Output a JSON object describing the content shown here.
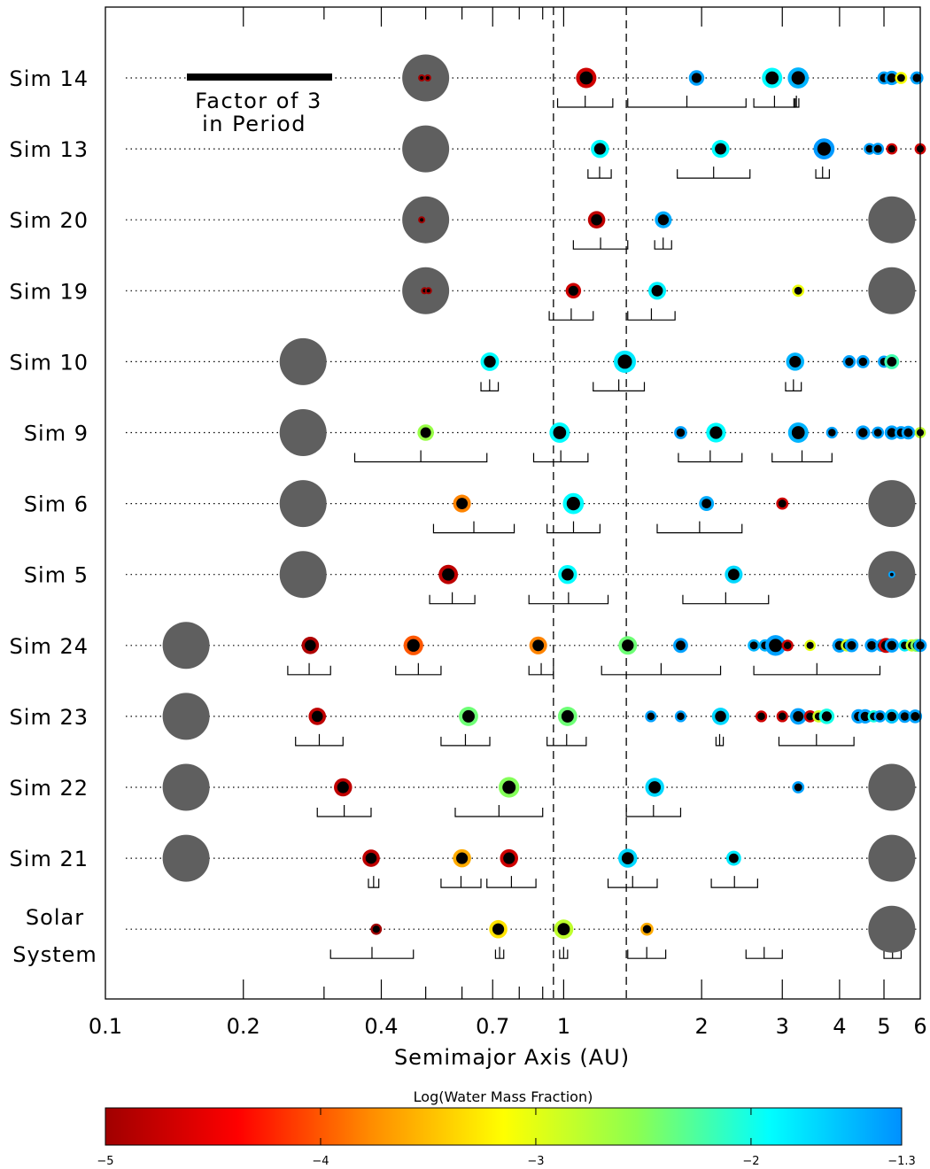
{
  "chart_data": {
    "type": "scatter",
    "title": "",
    "xlabel": "Semimajor Axis (AU)",
    "xscale": "log",
    "xlim": [
      0.1,
      6
    ],
    "x_tick_labels": [
      {
        "v": 0.1,
        "t": "0.1"
      },
      {
        "v": 0.2,
        "t": "0.2"
      },
      {
        "v": 0.4,
        "t": "0.4"
      },
      {
        "v": 0.7,
        "t": "0.7"
      },
      {
        "v": 1,
        "t": "1"
      },
      {
        "v": 2,
        "t": "2"
      },
      {
        "v": 3,
        "t": "3"
      },
      {
        "v": 4,
        "t": "4"
      },
      {
        "v": 5,
        "t": "5"
      },
      {
        "v": 6,
        "t": "6"
      }
    ],
    "x_minor_ticks": [
      0.3,
      0.5,
      0.6,
      0.8,
      0.9
    ],
    "dashed_lines_x": [
      0.95,
      1.37
    ],
    "colorbar": {
      "title": "Log(Water Mass Fraction)",
      "range": [
        -5,
        -1.3
      ],
      "ticks": [
        {
          "v": -5,
          "t": "−5"
        },
        {
          "v": -4,
          "t": "−4"
        },
        {
          "v": -3,
          "t": "−3"
        },
        {
          "v": -2,
          "t": "−2"
        },
        {
          "v": -1.3,
          "t": "−1.3"
        }
      ],
      "colors": [
        "#a00000",
        "#ff0000",
        "#ff8c00",
        "#ffff00",
        "#8cff50",
        "#00ffff",
        "#0090ff"
      ]
    },
    "annotation": {
      "line1": "Factor of 3",
      "line2": "in Period"
    },
    "rows": [
      {
        "label": "Sim 14",
        "giants": [
          {
            "a": 0.5,
            "inner": [
              {
                "a": 0.49,
                "w": -5.0
              },
              {
                "a": 0.505,
                "w": -5.0
              }
            ]
          }
        ],
        "planets": [
          {
            "a": 1.12,
            "w": -4.7,
            "m": 1.0
          },
          {
            "a": 1.95,
            "w": -1.4,
            "m": 0.4
          },
          {
            "a": 2.85,
            "w": -1.9,
            "m": 1.0
          },
          {
            "a": 3.25,
            "w": -1.5,
            "m": 1.1
          },
          {
            "a": 5.0,
            "w": -1.4,
            "m": 0.2
          },
          {
            "a": 5.2,
            "w": -1.4,
            "m": 0.3
          },
          {
            "a": 5.45,
            "w": -3.1,
            "m": 0.15
          },
          {
            "a": 5.9,
            "w": -1.4,
            "m": 0.2
          }
        ],
        "ranges": [
          [
            0.97,
            1.28
          ],
          [
            1.38,
            2.5
          ],
          [
            2.6,
            3.2
          ],
          [
            3.18,
            3.26
          ]
        ]
      },
      {
        "label": "Sim 13",
        "giants": [
          {
            "a": 0.5
          }
        ],
        "planets": [
          {
            "a": 1.2,
            "w": -1.9,
            "m": 0.7
          },
          {
            "a": 2.2,
            "w": -1.9,
            "m": 0.65
          },
          {
            "a": 3.7,
            "w": -1.35,
            "m": 1.1
          },
          {
            "a": 4.65,
            "w": -1.4,
            "m": 0.12
          },
          {
            "a": 4.85,
            "w": -1.4,
            "m": 0.15
          },
          {
            "a": 5.2,
            "w": -4.7,
            "m": 0.1
          },
          {
            "a": 6.0,
            "w": -4.7,
            "m": 0.1
          }
        ],
        "ranges": [
          [
            1.13,
            1.27
          ],
          [
            1.77,
            2.55
          ],
          [
            3.55,
            3.8
          ]
        ]
      },
      {
        "label": "Sim 20",
        "giants": [
          {
            "a": 0.5,
            "inner": [
              {
                "a": 0.49,
                "w": -5.0
              }
            ]
          },
          {
            "a": 5.2
          }
        ],
        "planets": [
          {
            "a": 1.18,
            "w": -4.8,
            "m": 0.6
          },
          {
            "a": 1.65,
            "w": -1.45,
            "m": 0.55
          }
        ],
        "ranges": [
          [
            1.05,
            1.38
          ],
          [
            1.58,
            1.72
          ]
        ]
      },
      {
        "label": "Sim 19",
        "giants": [
          {
            "a": 0.5,
            "inner": [
              {
                "a": 0.497,
                "w": -5.0
              },
              {
                "a": 0.507,
                "w": -5.0
              }
            ]
          },
          {
            "a": 5.2
          }
        ],
        "planets": [
          {
            "a": 1.05,
            "w": -4.7,
            "m": 0.4
          },
          {
            "a": 1.6,
            "w": -1.85,
            "m": 0.65
          },
          {
            "a": 3.25,
            "w": -3.05,
            "m": 0.15
          }
        ],
        "ranges": [
          [
            0.93,
            1.16
          ],
          [
            1.38,
            1.75
          ]
        ]
      },
      {
        "label": "Sim 10",
        "giants": [
          {
            "a": 0.27
          }
        ],
        "planets": [
          {
            "a": 0.69,
            "w": -1.9,
            "m": 0.75
          },
          {
            "a": 1.36,
            "w": -1.8,
            "m": 1.3
          },
          {
            "a": 3.2,
            "w": -1.5,
            "m": 0.7
          },
          {
            "a": 4.2,
            "w": -1.4,
            "m": 0.2
          },
          {
            "a": 4.5,
            "w": -1.4,
            "m": 0.2
          },
          {
            "a": 5.0,
            "w": -1.4,
            "m": 0.15
          },
          {
            "a": 5.2,
            "w": -2.2,
            "m": 0.35
          }
        ],
        "ranges": [
          [
            0.66,
            0.72
          ],
          [
            1.16,
            1.5
          ],
          [
            3.05,
            3.3
          ]
        ]
      },
      {
        "label": "Sim 9",
        "giants": [
          {
            "a": 0.27
          }
        ],
        "planets": [
          {
            "a": 0.5,
            "w": -2.6,
            "m": 0.5
          },
          {
            "a": 0.98,
            "w": -1.9,
            "m": 1.0
          },
          {
            "a": 1.8,
            "w": -1.4,
            "m": 0.2
          },
          {
            "a": 2.15,
            "w": -1.9,
            "m": 0.9
          },
          {
            "a": 3.25,
            "w": -1.5,
            "m": 1.0
          },
          {
            "a": 3.85,
            "w": -1.4,
            "m": 0.12
          },
          {
            "a": 4.5,
            "w": -1.4,
            "m": 0.3
          },
          {
            "a": 4.85,
            "w": -1.4,
            "m": 0.15
          },
          {
            "a": 5.2,
            "w": -1.4,
            "m": 0.3
          },
          {
            "a": 5.45,
            "w": -1.4,
            "m": 0.2
          },
          {
            "a": 5.65,
            "w": -1.4,
            "m": 0.25
          },
          {
            "a": 6.0,
            "w": -2.8,
            "m": 0.1
          }
        ],
        "ranges": [
          [
            0.35,
            0.68
          ],
          [
            0.86,
            1.13
          ],
          [
            1.78,
            2.45
          ],
          [
            2.85,
            3.85
          ]
        ]
      },
      {
        "label": "Sim 6",
        "giants": [
          {
            "a": 0.27
          },
          {
            "a": 5.2
          }
        ],
        "planets": [
          {
            "a": 0.6,
            "w": -3.8,
            "m": 0.65
          },
          {
            "a": 1.05,
            "w": -1.9,
            "m": 1.1
          },
          {
            "a": 2.05,
            "w": -1.45,
            "m": 0.35
          },
          {
            "a": 3.0,
            "w": -4.7,
            "m": 0.15
          }
        ],
        "ranges": [
          [
            0.52,
            0.78
          ],
          [
            0.92,
            1.2
          ],
          [
            1.6,
            2.45
          ]
        ]
      },
      {
        "label": "Sim 5",
        "giants": [
          {
            "a": 0.27
          },
          {
            "a": 5.2,
            "inner": [
              {
                "a": 5.2,
                "w": -1.4
              }
            ]
          }
        ],
        "planets": [
          {
            "a": 0.56,
            "w": -4.8,
            "m": 0.85
          },
          {
            "a": 1.02,
            "w": -1.9,
            "m": 0.8
          },
          {
            "a": 2.35,
            "w": -1.7,
            "m": 0.65
          }
        ],
        "ranges": [
          [
            0.51,
            0.64
          ],
          [
            0.84,
            1.25
          ],
          [
            1.82,
            2.8
          ]
        ]
      },
      {
        "label": "Sim 24",
        "giants": [
          {
            "a": 0.15
          }
        ],
        "planets": [
          {
            "a": 0.28,
            "w": -4.9,
            "m": 0.6
          },
          {
            "a": 0.47,
            "w": -4.0,
            "m": 0.9
          },
          {
            "a": 0.88,
            "w": -3.8,
            "m": 0.65
          },
          {
            "a": 1.38,
            "w": -2.4,
            "m": 0.75
          },
          {
            "a": 1.8,
            "w": -1.4,
            "m": 0.35
          },
          {
            "a": 2.6,
            "w": -1.5,
            "m": 0.15
          },
          {
            "a": 2.75,
            "w": -1.5,
            "m": 0.15
          },
          {
            "a": 2.9,
            "w": -1.4,
            "m": 1.05
          },
          {
            "a": 3.08,
            "w": -4.7,
            "m": 0.12
          },
          {
            "a": 3.45,
            "w": -3.0,
            "m": 0.1
          },
          {
            "a": 4.0,
            "w": -1.4,
            "m": 0.3
          },
          {
            "a": 4.15,
            "w": -2.9,
            "m": 0.15
          },
          {
            "a": 4.25,
            "w": -1.4,
            "m": 0.25
          },
          {
            "a": 4.7,
            "w": -1.4,
            "m": 0.25
          },
          {
            "a": 4.95,
            "w": -1.45,
            "m": 0.2
          },
          {
            "a": 5.05,
            "w": -4.7,
            "m": 0.35
          },
          {
            "a": 5.2,
            "w": -1.4,
            "m": 0.3
          },
          {
            "a": 5.55,
            "w": -1.8,
            "m": 0.15
          },
          {
            "a": 5.75,
            "w": -2.8,
            "m": 0.15
          },
          {
            "a": 5.9,
            "w": -2.5,
            "m": 0.2
          },
          {
            "a": 6.0,
            "w": -1.4,
            "m": 0.2
          }
        ],
        "ranges": [
          [
            0.25,
            0.31
          ],
          [
            0.43,
            0.54
          ],
          [
            0.84,
            0.95
          ],
          [
            1.21,
            2.2
          ],
          [
            2.6,
            4.9
          ]
        ]
      },
      {
        "label": "Sim 23",
        "giants": [
          {
            "a": 0.15
          }
        ],
        "planets": [
          {
            "a": 0.29,
            "w": -4.8,
            "m": 0.6
          },
          {
            "a": 0.62,
            "w": -2.4,
            "m": 0.85
          },
          {
            "a": 1.02,
            "w": -2.4,
            "m": 0.85
          },
          {
            "a": 1.55,
            "w": -1.4,
            "m": 0.12
          },
          {
            "a": 1.8,
            "w": -1.4,
            "m": 0.12
          },
          {
            "a": 2.2,
            "w": -1.7,
            "m": 0.6
          },
          {
            "a": 2.7,
            "w": -4.7,
            "m": 0.12
          },
          {
            "a": 3.0,
            "w": -4.7,
            "m": 0.12
          },
          {
            "a": 3.25,
            "w": -1.4,
            "m": 0.5
          },
          {
            "a": 3.45,
            "w": -4.7,
            "m": 0.15
          },
          {
            "a": 3.6,
            "w": -2.9,
            "m": 0.15
          },
          {
            "a": 3.75,
            "w": -2.0,
            "m": 0.4
          },
          {
            "a": 4.4,
            "w": -1.4,
            "m": 0.3
          },
          {
            "a": 4.55,
            "w": -1.4,
            "m": 0.3
          },
          {
            "a": 4.75,
            "w": -2.0,
            "m": 0.15
          },
          {
            "a": 4.9,
            "w": -1.4,
            "m": 0.15
          },
          {
            "a": 5.2,
            "w": -1.6,
            "m": 0.3
          },
          {
            "a": 5.55,
            "w": -1.4,
            "m": 0.2
          },
          {
            "a": 5.85,
            "w": -1.4,
            "m": 0.25
          }
        ],
        "ranges": [
          [
            0.26,
            0.33
          ],
          [
            0.54,
            0.69
          ],
          [
            0.92,
            1.12
          ],
          [
            2.15,
            2.23
          ],
          [
            2.95,
            4.3
          ]
        ]
      },
      {
        "label": "Sim 22",
        "giants": [
          {
            "a": 0.15
          },
          {
            "a": 5.2
          }
        ],
        "planets": [
          {
            "a": 0.33,
            "w": -4.8,
            "m": 0.7
          },
          {
            "a": 0.76,
            "w": -2.5,
            "m": 1.05
          },
          {
            "a": 1.58,
            "w": -1.7,
            "m": 0.8
          },
          {
            "a": 3.25,
            "w": -1.4,
            "m": 0.15
          }
        ],
        "ranges": [
          [
            0.29,
            0.38
          ],
          [
            0.58,
            0.9
          ],
          [
            1.37,
            1.8
          ]
        ]
      },
      {
        "label": "Sim 21",
        "giants": [
          {
            "a": 0.15
          },
          {
            "a": 5.2
          }
        ],
        "planets": [
          {
            "a": 0.38,
            "w": -4.8,
            "m": 0.6
          },
          {
            "a": 0.6,
            "w": -3.6,
            "m": 0.7
          },
          {
            "a": 0.76,
            "w": -4.7,
            "m": 0.7
          },
          {
            "a": 1.38,
            "w": -1.7,
            "m": 0.8
          },
          {
            "a": 2.35,
            "w": -1.8,
            "m": 0.35
          }
        ],
        "ranges": [
          [
            0.375,
            0.395
          ],
          [
            0.54,
            0.66
          ],
          [
            0.68,
            0.87
          ],
          [
            1.25,
            1.6
          ],
          [
            2.1,
            2.65
          ]
        ]
      },
      {
        "label": "Solar",
        "label2": "System",
        "giants": [
          {
            "a": 5.2
          }
        ],
        "planets": [
          {
            "a": 0.39,
            "w": -5.0,
            "m": 0.1
          },
          {
            "a": 0.72,
            "w": -3.3,
            "m": 0.7
          },
          {
            "a": 1.0,
            "w": -2.8,
            "m": 0.85
          },
          {
            "a": 1.52,
            "w": -3.6,
            "m": 0.2
          }
        ],
        "ranges": [
          [
            0.31,
            0.47
          ],
          [
            0.71,
            0.74
          ],
          [
            0.98,
            1.02
          ],
          [
            1.38,
            1.67
          ],
          [
            2.5,
            3.0
          ],
          [
            5.0,
            5.45
          ]
        ]
      }
    ]
  }
}
